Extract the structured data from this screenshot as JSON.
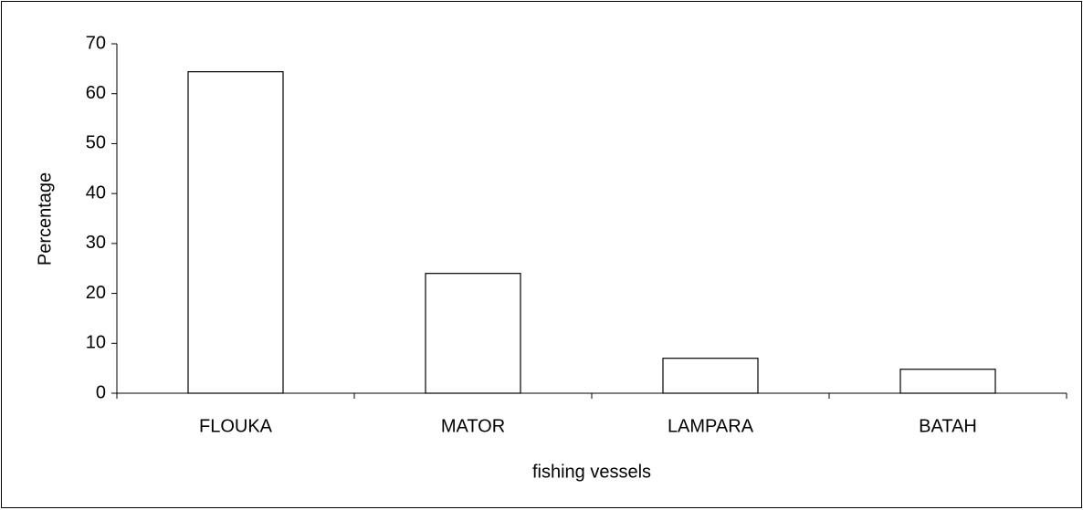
{
  "chart_data": {
    "type": "bar",
    "categories": [
      "FLOUKA",
      "MATOR",
      "LAMPARA",
      "BATAH"
    ],
    "values": [
      64.4,
      24,
      7,
      4.8
    ],
    "color": "#ffffff",
    "x_label": "fishing vessels",
    "y_label": "Percentage",
    "ylim": [
      0,
      70
    ],
    "yticks": [
      0,
      10,
      20,
      30,
      40,
      50,
      60,
      70
    ],
    "grid": false
  }
}
